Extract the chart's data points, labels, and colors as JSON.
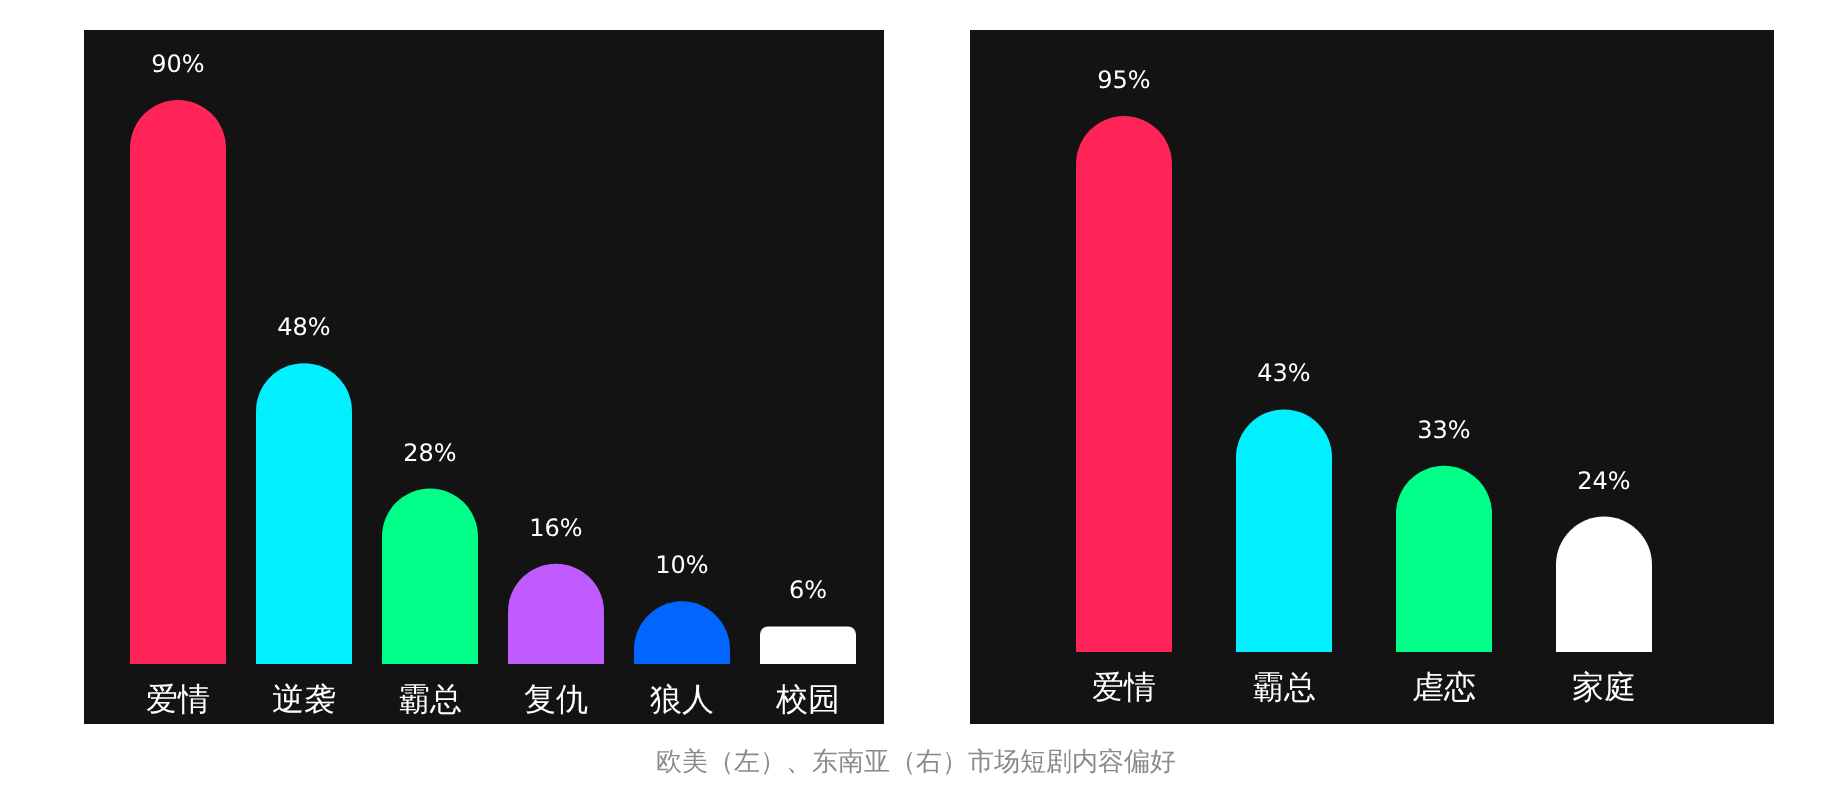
{
  "chart_data": [
    {
      "type": "bar",
      "categories": [
        "爱情",
        "逆袭",
        "霸总",
        "复仇",
        "狼人",
        "校园"
      ],
      "values": [
        90,
        48,
        28,
        16,
        10,
        6
      ],
      "value_labels": [
        "90%",
        "48%",
        "28%",
        "16%",
        "10%",
        "6%"
      ],
      "colors": [
        "#ff2458",
        "#00f0ff",
        "#00ff88",
        "#c05cff",
        "#0066ff",
        "#ffffff"
      ],
      "annotations": [
        "欧美（左）、东南亚（右）市场短剧内容偏好"
      ]
    },
    {
      "type": "bar",
      "categories": [
        "爱情",
        "霸总",
        "虐恋",
        "家庭"
      ],
      "values": [
        95,
        43,
        33,
        24
      ],
      "value_labels": [
        "95%",
        "43%",
        "33%",
        "24%"
      ],
      "colors": [
        "#ff2458",
        "#00f0ff",
        "#00ff88",
        "#ffffff"
      ]
    }
  ]
}
